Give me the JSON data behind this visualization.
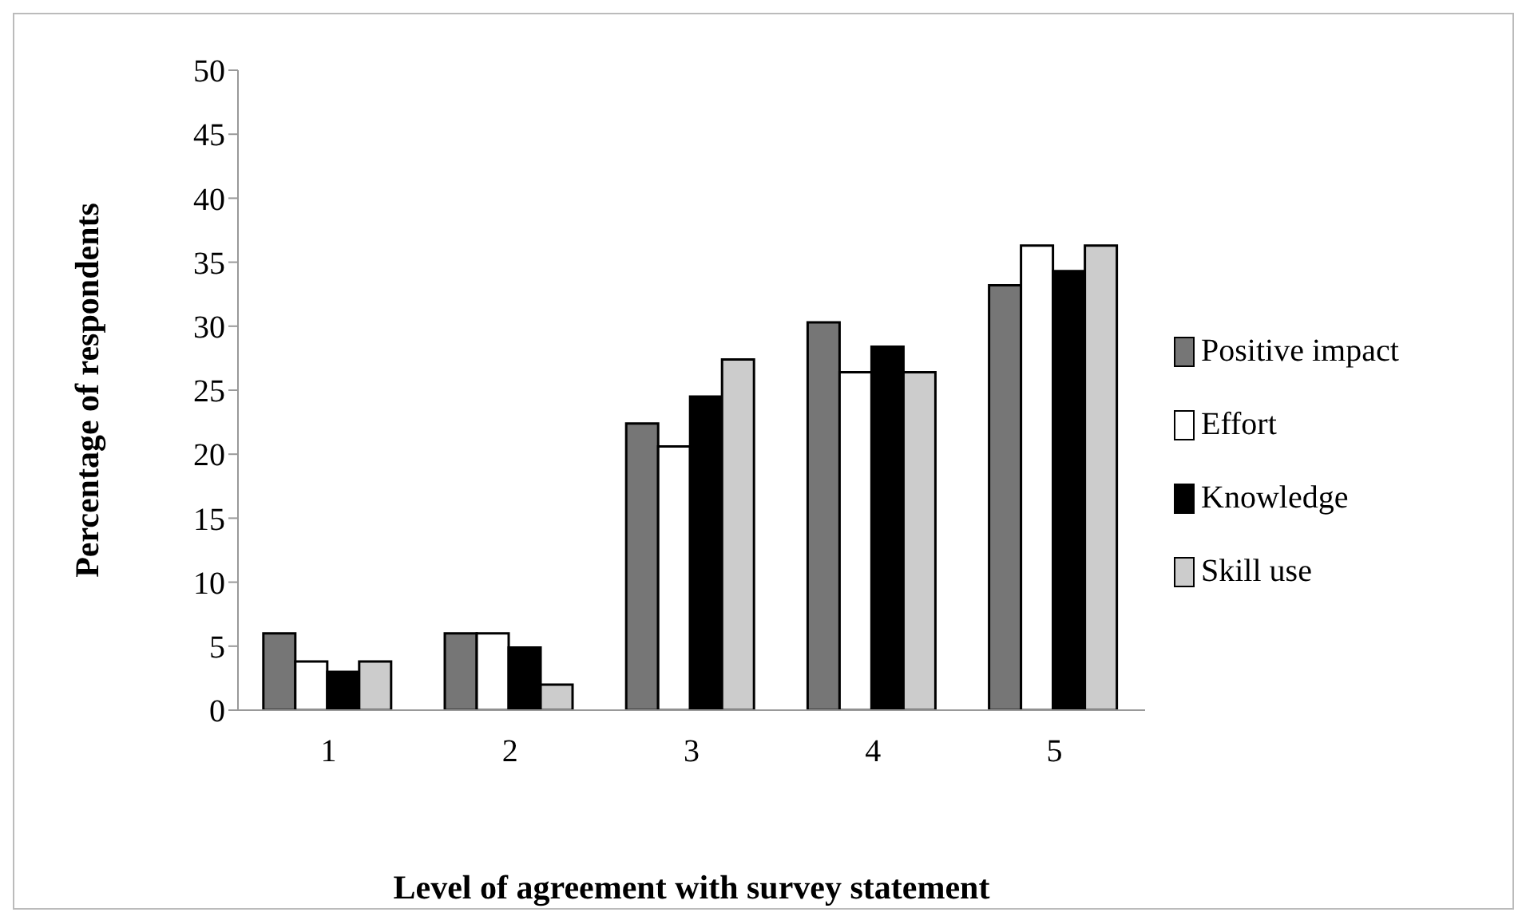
{
  "chart_data": {
    "type": "bar",
    "xlabel": "Level of agreement with survey statement",
    "ylabel": "Percentage of respondents",
    "categories": [
      "1",
      "2",
      "3",
      "4",
      "5"
    ],
    "series": [
      {
        "name": "Positive impact",
        "color": "#767676",
        "values": [
          6,
          6,
          22.4,
          30.3,
          33.2
        ]
      },
      {
        "name": "Effort",
        "color": "#ffffff",
        "values": [
          3.8,
          6,
          20.6,
          26.4,
          36.3
        ]
      },
      {
        "name": "Knowledge",
        "color": "#000000",
        "values": [
          3,
          4.9,
          24.5,
          28.4,
          34.3
        ]
      },
      {
        "name": "Skill use",
        "color": "#cccccc",
        "values": [
          3.8,
          2,
          27.4,
          26.4,
          36.3
        ]
      }
    ],
    "ylim": [
      0,
      50
    ],
    "yticks": [
      0,
      5,
      10,
      15,
      20,
      25,
      30,
      35,
      40,
      45,
      50
    ],
    "grid": false,
    "legend": "right"
  }
}
